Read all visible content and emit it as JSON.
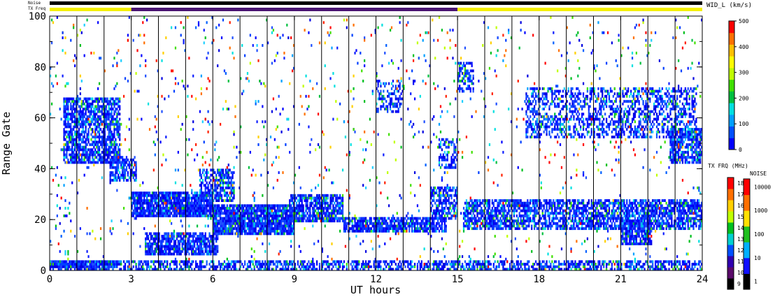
{
  "chart_data": {
    "type": "heatmap",
    "xlabel": "UT hours",
    "ylabel": "Range Gate",
    "xlim": [
      0,
      24
    ],
    "ylim": [
      0,
      100
    ],
    "x_ticks": [
      "0",
      "3",
      "6",
      "9",
      "12",
      "15",
      "18",
      "21",
      "24"
    ],
    "y_ticks": [
      "0",
      "20",
      "40",
      "60",
      "80",
      "100"
    ],
    "vertical_lines_ut": [
      1,
      2,
      3,
      4,
      5,
      6,
      7,
      8,
      9,
      10,
      11,
      12,
      13,
      14,
      15,
      16,
      17,
      18,
      19,
      20,
      21,
      22,
      23
    ],
    "top_bars": {
      "noise_label": "Noise",
      "txfreq_label": "TX Freq",
      "noise_color": "#000000",
      "txfreq_segments": [
        {
          "from": 0,
          "to": 3,
          "color": "#f4f000"
        },
        {
          "from": 3,
          "to": 15,
          "color": "#4a1472"
        },
        {
          "from": 15,
          "to": 24,
          "color": "#f4f000"
        }
      ]
    },
    "bands": [
      {
        "x": [
          0,
          2.3
        ],
        "y": [
          1,
          4
        ],
        "density": 0.9,
        "noise": 0
      },
      {
        "x": [
          0,
          24
        ],
        "y": [
          0,
          4
        ],
        "density": 0.6,
        "noise": 0.25
      },
      {
        "x": [
          0.5,
          2.6
        ],
        "y": [
          42,
          68
        ],
        "density": 0.75,
        "noise": 0.2
      },
      {
        "x": [
          2.2,
          3.2
        ],
        "y": [
          35,
          45
        ],
        "density": 0.7,
        "noise": 0.2
      },
      {
        "x": [
          3.0,
          6.0
        ],
        "y": [
          21,
          31
        ],
        "density": 0.9,
        "noise": 0.1
      },
      {
        "x": [
          5.5,
          6.8
        ],
        "y": [
          27,
          40
        ],
        "density": 0.6,
        "noise": 0.2
      },
      {
        "x": [
          3.5,
          6.2
        ],
        "y": [
          6,
          15
        ],
        "density": 0.8,
        "noise": 0.15
      },
      {
        "x": [
          6.0,
          9.0
        ],
        "y": [
          14,
          26
        ],
        "density": 0.9,
        "noise": 0.15
      },
      {
        "x": [
          8.8,
          10.8
        ],
        "y": [
          19,
          30
        ],
        "density": 0.8,
        "noise": 0.2
      },
      {
        "x": [
          10.8,
          14.6
        ],
        "y": [
          15,
          21
        ],
        "density": 0.8,
        "noise": 0.15
      },
      {
        "x": [
          14.0,
          15.0
        ],
        "y": [
          20,
          33
        ],
        "density": 0.6,
        "noise": 0.2
      },
      {
        "x": [
          15.2,
          24.0
        ],
        "y": [
          16,
          28
        ],
        "density": 0.7,
        "noise": 0.2
      },
      {
        "x": [
          17.5,
          23.8
        ],
        "y": [
          52,
          72
        ],
        "density": 0.45,
        "noise": 0.2
      },
      {
        "x": [
          22.8,
          24.0
        ],
        "y": [
          42,
          56
        ],
        "density": 0.7,
        "noise": 0.2
      },
      {
        "x": [
          21.0,
          22.2
        ],
        "y": [
          10,
          20
        ],
        "density": 0.8,
        "noise": 0.2
      },
      {
        "x": [
          15.0,
          15.6
        ],
        "y": [
          70,
          82
        ],
        "density": 0.5,
        "noise": 0.3
      },
      {
        "x": [
          12.0,
          13.0
        ],
        "y": [
          62,
          75
        ],
        "density": 0.45,
        "noise": 0.3
      },
      {
        "x": [
          14.3,
          15.0
        ],
        "y": [
          40,
          52
        ],
        "density": 0.5,
        "noise": 0.2
      }
    ],
    "colorbars": [
      {
        "name": "WIDL",
        "label": "WID_L (km/s)",
        "ticks": [
          "0",
          "100",
          "200",
          "300",
          "400",
          "500"
        ],
        "colors": [
          "#0000ff",
          "#0050ff",
          "#00a0ff",
          "#00e0e0",
          "#00c040",
          "#40e000",
          "#c0ff00",
          "#ffff00",
          "#ffc000",
          "#ff7000",
          "#ff0000"
        ]
      },
      {
        "name": "TXFRQ",
        "label": "TX FRQ (MHz)",
        "ticks": [
          "9",
          "10",
          "11",
          "12",
          "13",
          "14",
          "15",
          "16",
          "17",
          "18"
        ],
        "colors": [
          "#000000",
          "#5a0a6a",
          "#3000b0",
          "#0050ff",
          "#00d0d0",
          "#00c020",
          "#c0ff00",
          "#ffd000",
          "#ff7000",
          "#ff0000"
        ]
      },
      {
        "name": "NOISE",
        "label": "NOISE",
        "ticks": [
          "1",
          "10",
          "100",
          "1000",
          "10000"
        ],
        "colors": [
          "#000000",
          "#1010ff",
          "#00b0ff",
          "#20c020",
          "#ffe000",
          "#ff7000",
          "#ff0000"
        ]
      }
    ]
  }
}
